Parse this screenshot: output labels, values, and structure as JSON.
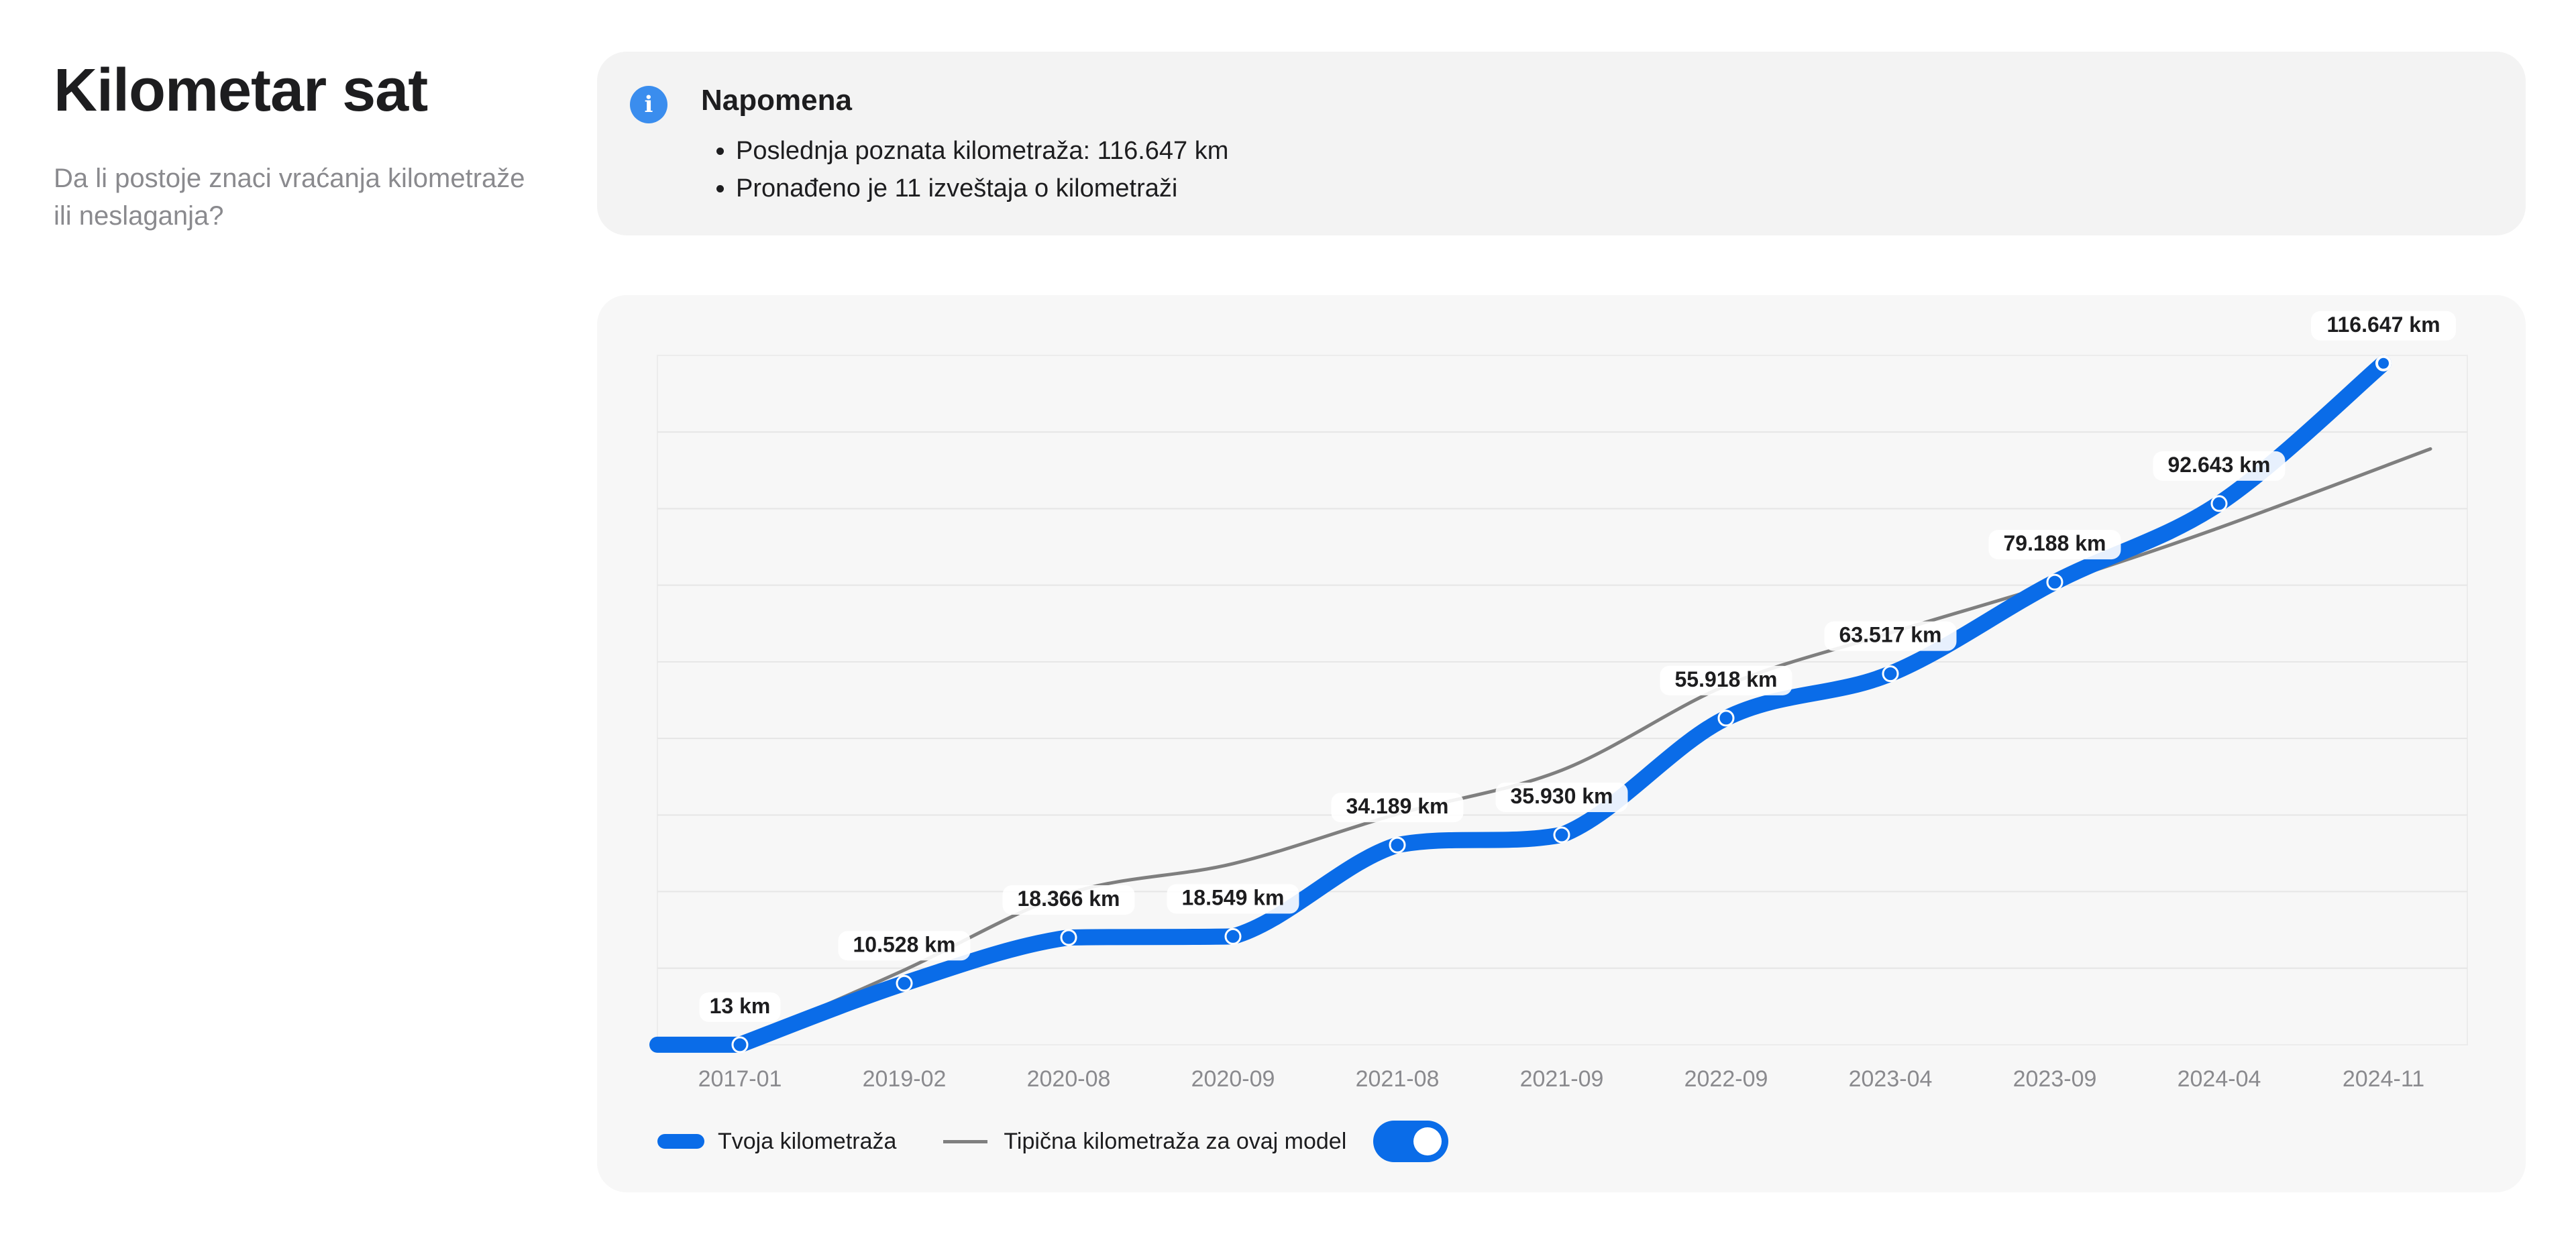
{
  "page": {
    "title": "Kilometar sat",
    "subtitle": "Da li postoje znaci vraćanja kilometraže ili neslaganja?"
  },
  "note": {
    "icon": "info-icon",
    "title": "Napomena",
    "items": [
      "Poslednja poznata kilometraža: 116.647 km",
      "Pronađeno je 11 izveštaja o kilometraži"
    ]
  },
  "legend": {
    "your_label": "Tvoja kilometraža",
    "typical_label": "Tipična kilometraža za ovaj model",
    "toggle_on": true
  },
  "colors": {
    "your_line": "#0a6ce8",
    "typical_line": "#7f7f7f",
    "info_icon": "#3a8dee"
  },
  "chart_data": {
    "type": "line",
    "categories": [
      "2017-01",
      "2019-02",
      "2020-08",
      "2020-09",
      "2021-08",
      "2021-09",
      "2022-09",
      "2023-04",
      "2023-09",
      "2024-04",
      "2024-11"
    ],
    "series": [
      {
        "name": "Tvoja kilometraža",
        "values": [
          13,
          10528,
          18366,
          18549,
          34189,
          35930,
          55918,
          63517,
          79188,
          92643,
          116647
        ],
        "labels": [
          "13 km",
          "10.528 km",
          "18.366 km",
          "18.549 km",
          "34.189 km",
          "35.930 km",
          "55.918 km",
          "63.517 km",
          "79.188 km",
          "92.643 km",
          "116.647 km"
        ]
      },
      {
        "name": "Tipična kilometraža za ovaj model",
        "values": [
          400,
          12800,
          25900,
          31000,
          39500,
          47000,
          61500,
          70500,
          79000,
          88500,
          102000
        ]
      }
    ],
    "ylim": [
      0,
      118000
    ],
    "grid": true,
    "legend_position": "bottom-left"
  }
}
